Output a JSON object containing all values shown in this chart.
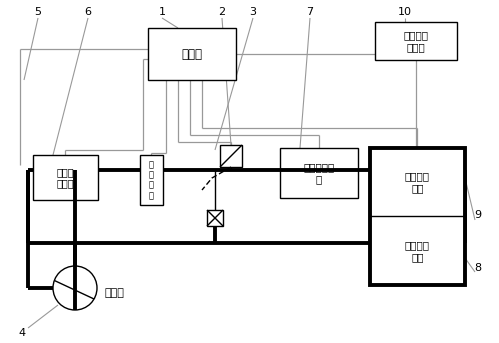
{
  "bg_color": "#ffffff",
  "line_color": "#000000",
  "thick_line_color": "#000000",
  "gray_line_color": "#999999",
  "labels": {
    "controller": "控制器",
    "condenser_dryer": "冷凝器\n干燥器",
    "pressure_switch": "压\n力\n开\n关",
    "passenger_evap": "乘员舱蒸发\n器",
    "cargo_temp_sensor": "货舱温度\n传感器",
    "refrigeration_circuit": "冷藏机组\n电路",
    "cargo_refrigeration": "货舱冷藏\n机组",
    "compressor": "压缩机",
    "num1": "1",
    "num2": "2",
    "num3": "3",
    "num4": "4",
    "num5": "5",
    "num6": "6",
    "num7": "7",
    "num8": "8",
    "num9": "9",
    "num10": "10"
  },
  "figsize": [
    4.99,
    3.43
  ],
  "dpi": 100
}
